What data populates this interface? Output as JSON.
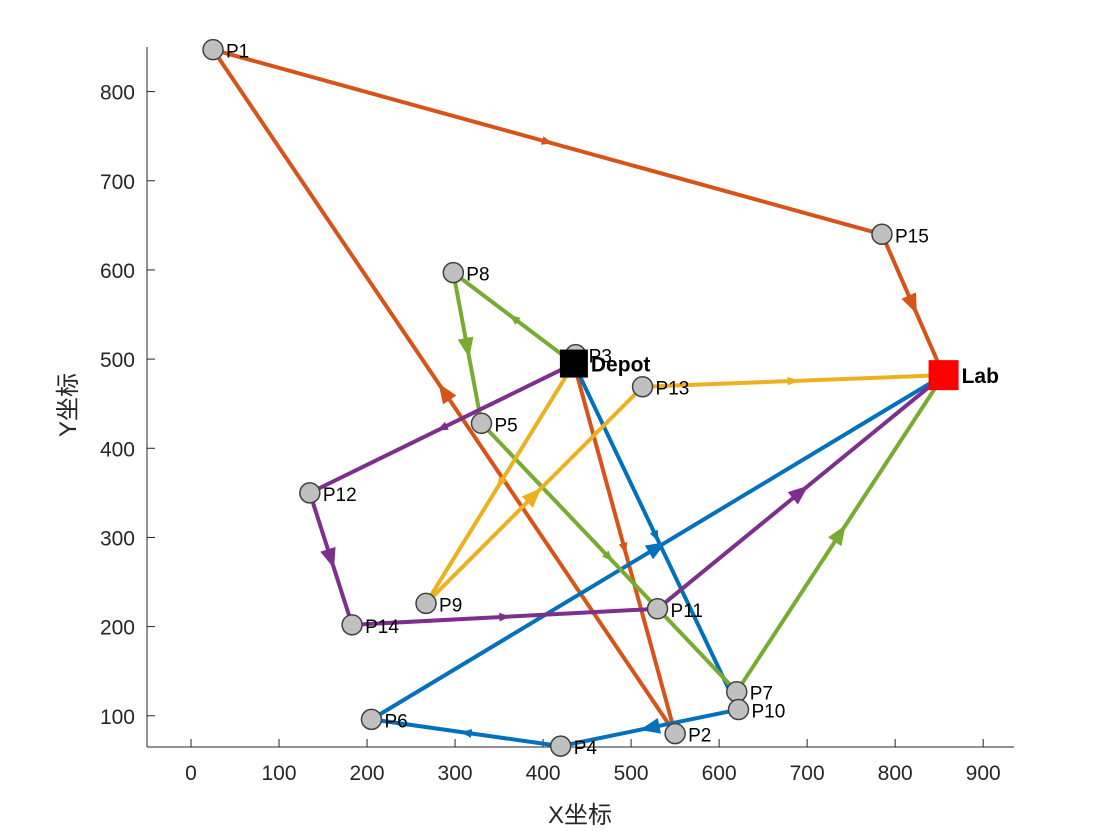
{
  "chart_data": {
    "type": "scatter",
    "title": "",
    "xlabel": "X坐标",
    "ylabel": "Y坐标",
    "xlim": [
      -50,
      935
    ],
    "ylim": [
      65,
      850
    ],
    "xticks": [
      0,
      100,
      200,
      300,
      400,
      500,
      600,
      700,
      800,
      900
    ],
    "yticks": [
      100,
      200,
      300,
      400,
      500,
      600,
      700,
      800
    ],
    "grid": false,
    "depot": {
      "label": "Depot",
      "x": 435,
      "y": 495,
      "color": "#000000"
    },
    "lab": {
      "label": "Lab",
      "x": 855,
      "y": 482,
      "color": "#ff0000"
    },
    "points": [
      {
        "label": "P1",
        "x": 25,
        "y": 847
      },
      {
        "label": "P2",
        "x": 550,
        "y": 80
      },
      {
        "label": "P3",
        "x": 437,
        "y": 505
      },
      {
        "label": "P4",
        "x": 420,
        "y": 66
      },
      {
        "label": "P5",
        "x": 330,
        "y": 428
      },
      {
        "label": "P6",
        "x": 205,
        "y": 96
      },
      {
        "label": "P7",
        "x": 620,
        "y": 127
      },
      {
        "label": "P8",
        "x": 298,
        "y": 597
      },
      {
        "label": "P9",
        "x": 267,
        "y": 226
      },
      {
        "label": "P10",
        "x": 622,
        "y": 107
      },
      {
        "label": "P11",
        "x": 530,
        "y": 220
      },
      {
        "label": "P12",
        "x": 135,
        "y": 350
      },
      {
        "label": "P13",
        "x": 513,
        "y": 469
      },
      {
        "label": "P14",
        "x": 183,
        "y": 202
      },
      {
        "label": "P15",
        "x": 785,
        "y": 640
      }
    ],
    "routes": [
      {
        "color": "#d95319",
        "stops": [
          "Depot",
          "P2",
          "P1",
          "P15",
          "Lab"
        ]
      },
      {
        "color": "#0072bd",
        "stops": [
          "Depot",
          "P10",
          "P4",
          "P6",
          "Lab"
        ]
      },
      {
        "color": "#77ac30",
        "stops": [
          "Depot",
          "P8",
          "P5",
          "P7",
          "Lab"
        ]
      },
      {
        "color": "#7e2f8e",
        "stops": [
          "Depot",
          "P12",
          "P14",
          "P11",
          "Lab"
        ]
      },
      {
        "color": "#edb120",
        "stops": [
          "Depot",
          "P9",
          "P13",
          "Lab"
        ]
      }
    ]
  }
}
